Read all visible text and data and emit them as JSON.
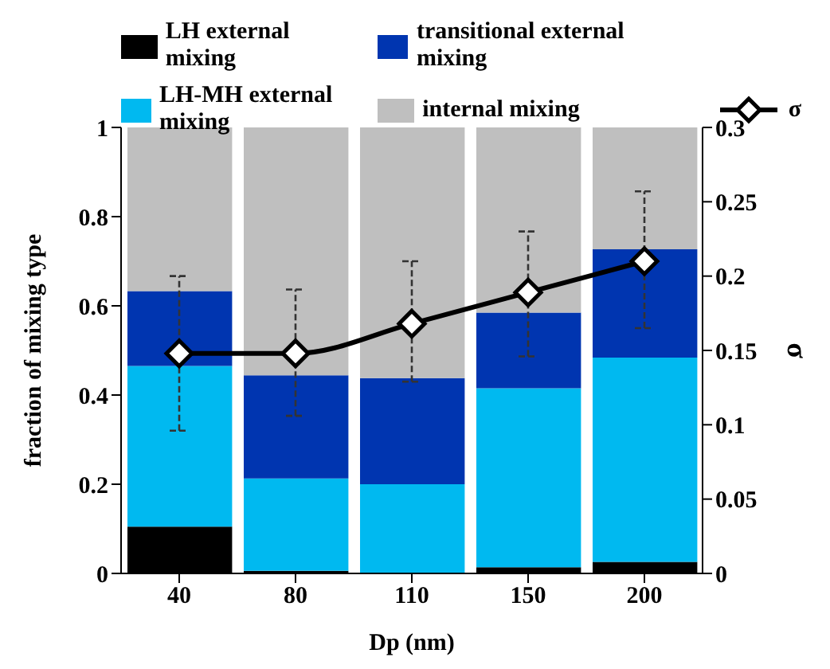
{
  "chart_data": {
    "type": "bar",
    "stacked": true,
    "categories": [
      "40",
      "80",
      "110",
      "150",
      "200"
    ],
    "xlabel": "Dp (nm)",
    "ylabel": "fraction of mixing type",
    "y2label": "σ",
    "ylim": [
      0,
      1
    ],
    "yticks": [
      0,
      0.2,
      0.4,
      0.6,
      0.8,
      1
    ],
    "y2lim": [
      0,
      0.3
    ],
    "y2ticks": [
      0,
      0.05,
      0.1,
      0.15,
      0.2,
      0.25,
      0.3
    ],
    "legend": "top",
    "series": [
      {
        "name": "LH external mixing",
        "color": "#000000",
        "values": [
          0.105,
          0.006,
          0,
          0.014,
          0.026
        ]
      },
      {
        "name": "LH-MH external mixing",
        "color": "#00b9f0",
        "values": [
          0.36,
          0.207,
          0.2,
          0.401,
          0.458
        ]
      },
      {
        "name": "transitional external mixing",
        "color": "#0035b0",
        "values": [
          0.168,
          0.231,
          0.238,
          0.17,
          0.243
        ]
      },
      {
        "name": "internal mixing",
        "color": "#bfbfbf",
        "values": [
          0.367,
          0.556,
          0.562,
          0.415,
          0.273
        ]
      },
      {
        "name": "σ",
        "type": "line",
        "axis": "y2",
        "color": "#000000",
        "marker": "diamond",
        "line_style": "solid",
        "values": [
          0.148,
          0.148,
          0.168,
          0.189,
          0.21
        ],
        "errors": [
          [
            0.096,
            0.2
          ],
          [
            0.106,
            0.191
          ],
          [
            0.129,
            0.21
          ],
          [
            0.146,
            0.23
          ],
          [
            0.165,
            0.257
          ]
        ]
      }
    ]
  }
}
